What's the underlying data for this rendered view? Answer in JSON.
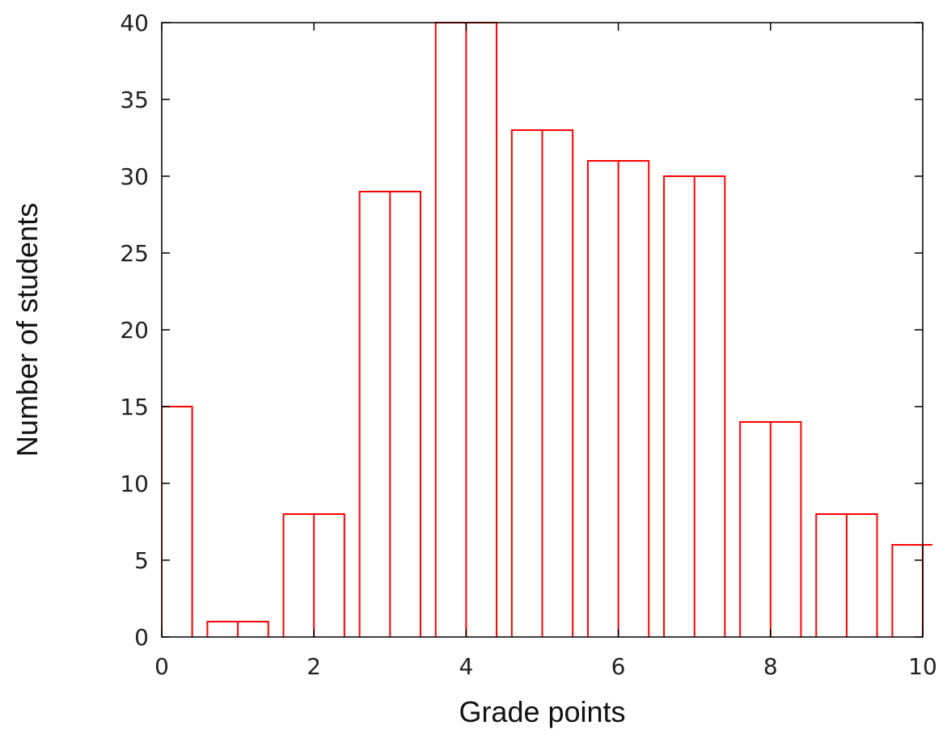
{
  "chart_data": {
    "type": "bar",
    "xlabel": "Grade points",
    "ylabel": "Number of students",
    "xlim": [
      0,
      10
    ],
    "ylim": [
      0,
      40
    ],
    "x_ticks": [
      "0",
      "2",
      "4",
      "6",
      "8",
      "10"
    ],
    "y_ticks": [
      "0",
      "5",
      "10",
      "15",
      "20",
      "25",
      "30",
      "35",
      "40"
    ],
    "bar_width": 0.8,
    "x": [
      0,
      1,
      2,
      3,
      4,
      5,
      6,
      7,
      8,
      9,
      10
    ],
    "values": [
      15,
      1,
      8,
      29,
      40,
      33,
      31,
      30,
      14,
      8,
      6
    ],
    "bar_color": "#ff0000",
    "grid": false,
    "legend": "none"
  }
}
